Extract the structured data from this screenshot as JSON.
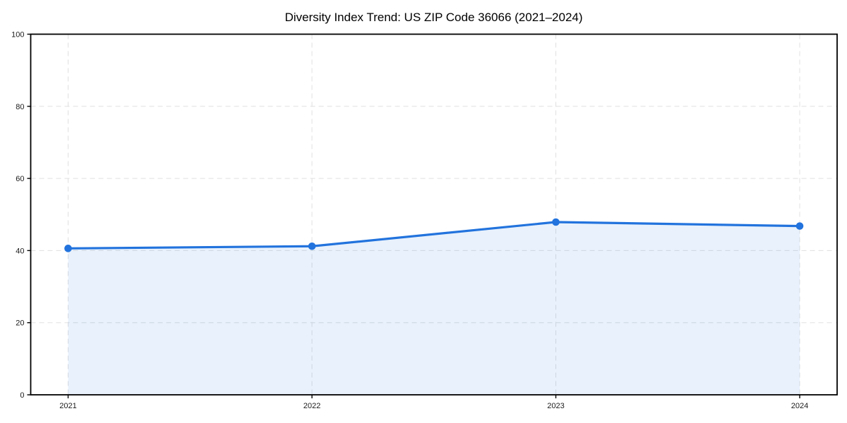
{
  "page": {
    "background": "#ffffff"
  },
  "chart_data": {
    "type": "line",
    "title": "Diversity Index Trend: US ZIP Code 36066 (2021–2024)",
    "categories": [
      "2021",
      "2022",
      "2023",
      "2024"
    ],
    "series": [
      {
        "name": "Diversity Index",
        "values": [
          40.6,
          41.2,
          47.9,
          46.8
        ]
      }
    ],
    "xlabel": "",
    "ylabel": "",
    "ylim": [
      0,
      100
    ],
    "yticks": [
      0,
      20,
      40,
      60,
      80,
      100
    ],
    "grid": true,
    "grid_style": "dashed",
    "legend_position": "none",
    "markers": "circle",
    "area_fill": true,
    "fill_opacity": 0.1,
    "colors": {
      "line": "#2273dd",
      "fill": "#2273dd",
      "grid": "#e0e0e0",
      "axis": "#000000",
      "tick_labels": "#1a1a1a",
      "title": "#000000",
      "background": "#ffffff"
    }
  }
}
